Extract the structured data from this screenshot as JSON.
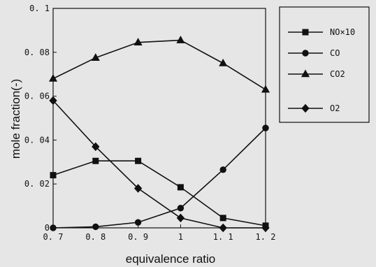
{
  "chart_data": {
    "type": "line",
    "xlabel": "equivalence ratio",
    "ylabel": "mole fraction(-)",
    "xlim": [
      0.7,
      1.2
    ],
    "ylim": [
      0,
      0.1
    ],
    "grid": false,
    "legend_position": "top-right outside",
    "x_ticks": [
      "0. 7",
      "0. 8",
      "0. 9",
      "1",
      "1. 1",
      "1. 2"
    ],
    "y_ticks": [
      "0",
      "0. 02",
      "0. 04",
      "0. 06",
      "0. 08",
      "0. 1"
    ],
    "x": [
      0.7,
      0.8,
      0.9,
      1.0,
      1.1,
      1.2
    ],
    "series": [
      {
        "name": "NO×10",
        "marker": "square",
        "values": [
          0.024,
          0.0305,
          0.0305,
          0.0185,
          0.0045,
          0.001
        ]
      },
      {
        "name": "CO",
        "marker": "circle",
        "values": [
          0.0,
          0.0005,
          0.0025,
          0.009,
          0.0265,
          0.0455
        ]
      },
      {
        "name": "CO2",
        "marker": "triangle",
        "values": [
          0.068,
          0.0775,
          0.0845,
          0.0855,
          0.075,
          0.063
        ]
      },
      {
        "name": "O2",
        "marker": "diamond",
        "values": [
          0.058,
          0.037,
          0.018,
          0.0045,
          0.0,
          0.0
        ]
      }
    ]
  }
}
